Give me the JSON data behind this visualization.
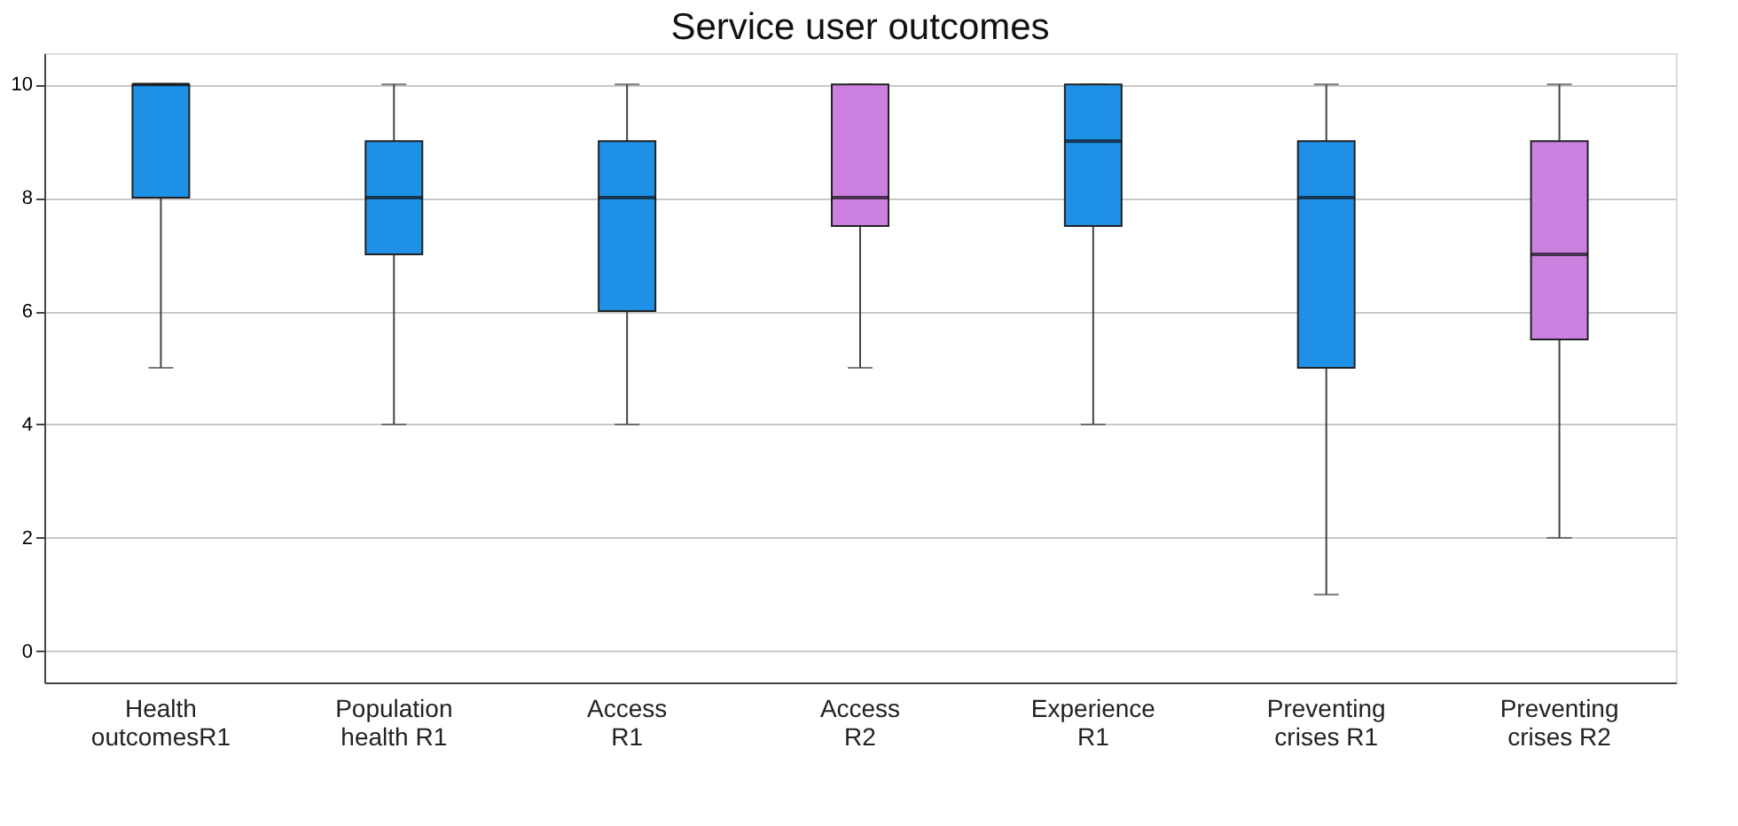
{
  "chart_data": {
    "type": "box",
    "title": "Service user outcomes",
    "categories": [
      "Health\noutcomesR1",
      "Population\nhealth R1",
      "Access\nR1",
      "Access\nR2",
      "Experience\nR1",
      "Preventing\ncrises R1",
      "Preventing\ncrises R2"
    ],
    "boxes": [
      {
        "low": 5,
        "q1": 8,
        "median": 10,
        "q3": 10,
        "high": 10
      },
      {
        "low": 4,
        "q1": 7,
        "median": 8,
        "q3": 9,
        "high": 10
      },
      {
        "low": 4,
        "q1": 6,
        "median": 8,
        "q3": 9,
        "high": 10
      },
      {
        "low": 5,
        "q1": 7.5,
        "median": 8,
        "q3": 10,
        "high": 10
      },
      {
        "low": 4,
        "q1": 7.5,
        "median": 9,
        "q3": 10,
        "high": 10
      },
      {
        "low": 1,
        "q1": 5,
        "median": 8,
        "q3": 9,
        "high": 10
      },
      {
        "low": 2,
        "q1": 5.5,
        "median": 7,
        "q3": 9,
        "high": 10
      }
    ],
    "colors": [
      "#1e90e6",
      "#1e90e6",
      "#1e90e6",
      "#cc80e0",
      "#1e90e6",
      "#1e90e6",
      "#cc80e0"
    ],
    "ylim": [
      -0.55,
      10.55
    ],
    "yticks": [
      0,
      2,
      4,
      6,
      8,
      10
    ],
    "grid": "y"
  }
}
